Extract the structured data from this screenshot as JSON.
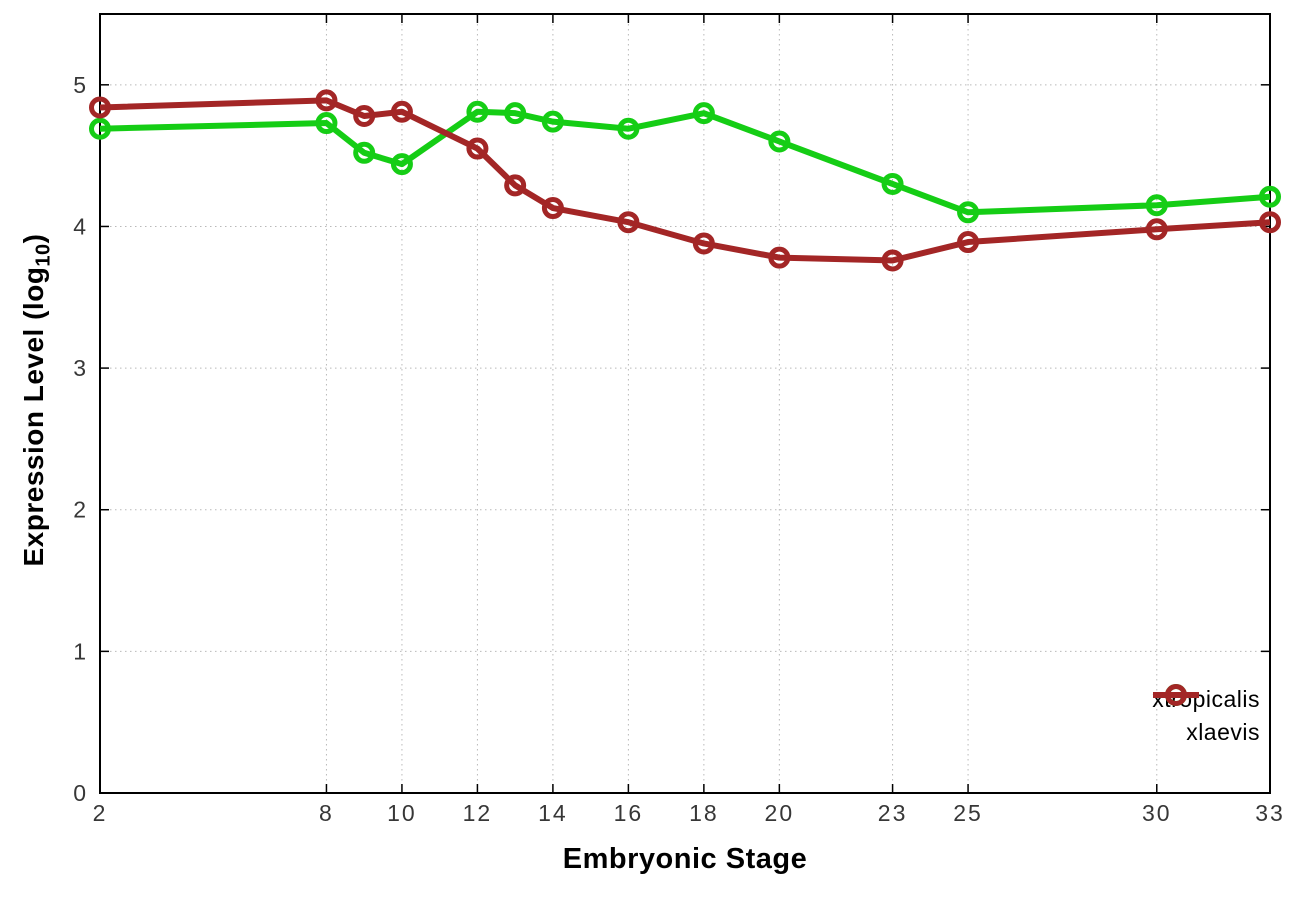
{
  "labels": {
    "ylabel_prefix": "Expression Level (log",
    "ylabel_sub": "10",
    "ylabel_suffix": ")"
  },
  "chart_data": {
    "type": "line",
    "title": "",
    "xlabel": "Embryonic Stage",
    "ylabel": "Expression Level (log10)",
    "grid": true,
    "legend_position": "inside bottom-right",
    "xlim": [
      2,
      33
    ],
    "ylim": [
      0,
      5.5
    ],
    "x_ticks": [
      2,
      8,
      10,
      12,
      14,
      16,
      18,
      20,
      23,
      25,
      30,
      33
    ],
    "y_ticks": [
      0,
      1,
      2,
      3,
      4,
      5
    ],
    "x": [
      2,
      8,
      9,
      10,
      12,
      13,
      14,
      16,
      18,
      20,
      23,
      25,
      30,
      33
    ],
    "series": [
      {
        "name": "xtropicalis",
        "color": "#15cd15",
        "values": [
          4.69,
          4.73,
          4.52,
          4.44,
          4.81,
          4.8,
          4.74,
          4.69,
          4.8,
          4.6,
          4.3,
          4.1,
          4.15,
          4.21
        ]
      },
      {
        "name": "xlaevis",
        "color": "#a32626",
        "values": [
          4.84,
          4.89,
          4.78,
          4.81,
          4.55,
          4.29,
          4.13,
          4.03,
          3.88,
          3.78,
          3.76,
          3.89,
          3.98,
          4.03
        ]
      }
    ]
  }
}
